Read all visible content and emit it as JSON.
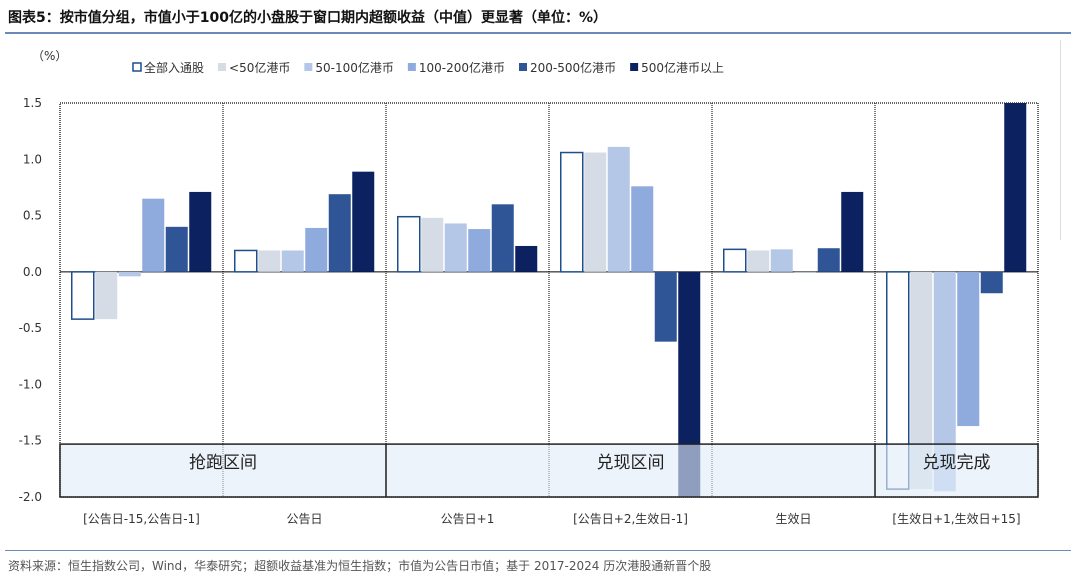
{
  "title": "图表5：按市值分组，市值小于100亿的小盘股于窗口期内超额收益（中值）更显著（单位：%）",
  "source": "资料来源：恒生指数公司，Wind，华泰研究；超额收益基准为恒生指数；市值为公告日市值；基于 2017-2024 历次港股通新晋个股",
  "chart_data": {
    "type": "bar",
    "ylabel": "（%）",
    "ylim": [
      -2.0,
      1.5
    ],
    "yticks": [
      "1.5",
      "1.0",
      "0.5",
      "0.0",
      "-0.5",
      "-1.0",
      "-1.5",
      "-2.0"
    ],
    "ytick_values": [
      1.5,
      1.0,
      0.5,
      0.0,
      -0.5,
      -1.0,
      -1.5,
      -2.0
    ],
    "categories": [
      "[公告日-15,公告日-1]",
      "公告日",
      "公告日+1",
      "[公告日+2,生效日-1]",
      "生效日",
      "[生效日+1,生效日+15]"
    ],
    "legend_position": "top",
    "series": [
      {
        "name": "全部入通股",
        "color": "#ffffff",
        "stroke": "#1f4e8c",
        "values": [
          -0.42,
          0.19,
          0.49,
          1.06,
          0.2,
          -1.93
        ]
      },
      {
        "name": "<50亿港币",
        "color": "#d6dce5",
        "values": [
          -0.42,
          0.19,
          0.48,
          1.06,
          0.19,
          -1.93
        ]
      },
      {
        "name": "50-100亿港币",
        "color": "#b4c7e7",
        "values": [
          -0.04,
          0.19,
          0.43,
          1.11,
          0.2,
          -1.95
        ]
      },
      {
        "name": "100-200亿港币",
        "color": "#8faadc",
        "values": [
          0.65,
          0.39,
          0.38,
          0.76,
          0.0,
          -1.37
        ]
      },
      {
        "name": "200-500亿港币",
        "color": "#2f5597",
        "values": [
          0.4,
          0.69,
          0.6,
          -0.62,
          0.21,
          -0.19
        ]
      },
      {
        "name": "500亿港币以上",
        "color": "#0b2160",
        "values": [
          0.71,
          0.89,
          0.23,
          -2.0,
          0.71,
          1.5
        ]
      }
    ],
    "annotations": [
      {
        "text": "抢跑区间",
        "from": 0,
        "to": 1
      },
      {
        "text": "兑现区间",
        "from": 2,
        "to": 4
      },
      {
        "text": "兑现完成",
        "from": 5,
        "to": 5
      }
    ]
  }
}
